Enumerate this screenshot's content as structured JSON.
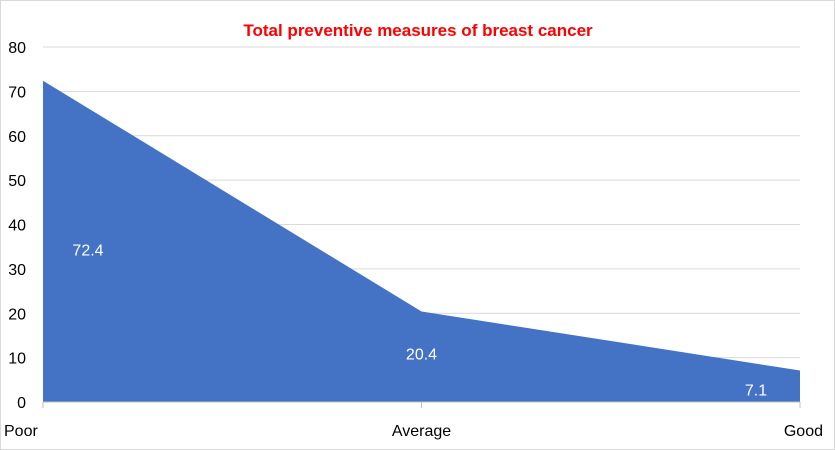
{
  "chart_data": {
    "type": "area",
    "title": "Total preventive measures of breast cancer",
    "categories": [
      "Poor",
      "Average",
      "Good"
    ],
    "series": [
      {
        "values": [
          72.4,
          20.4,
          7.1
        ]
      }
    ],
    "data_labels": [
      "72.4",
      "20.4",
      "7.1"
    ],
    "y_ticks": [
      "0",
      "10",
      "20",
      "30",
      "40",
      "50",
      "60",
      "70",
      "80"
    ],
    "ylim": [
      0,
      80
    ],
    "grid": true,
    "legend": "none"
  },
  "colors": {
    "series_fill": "#4472C4",
    "title": "#FF0000",
    "gridline": "#D9D9D9",
    "axis": "#BFBFBF"
  }
}
